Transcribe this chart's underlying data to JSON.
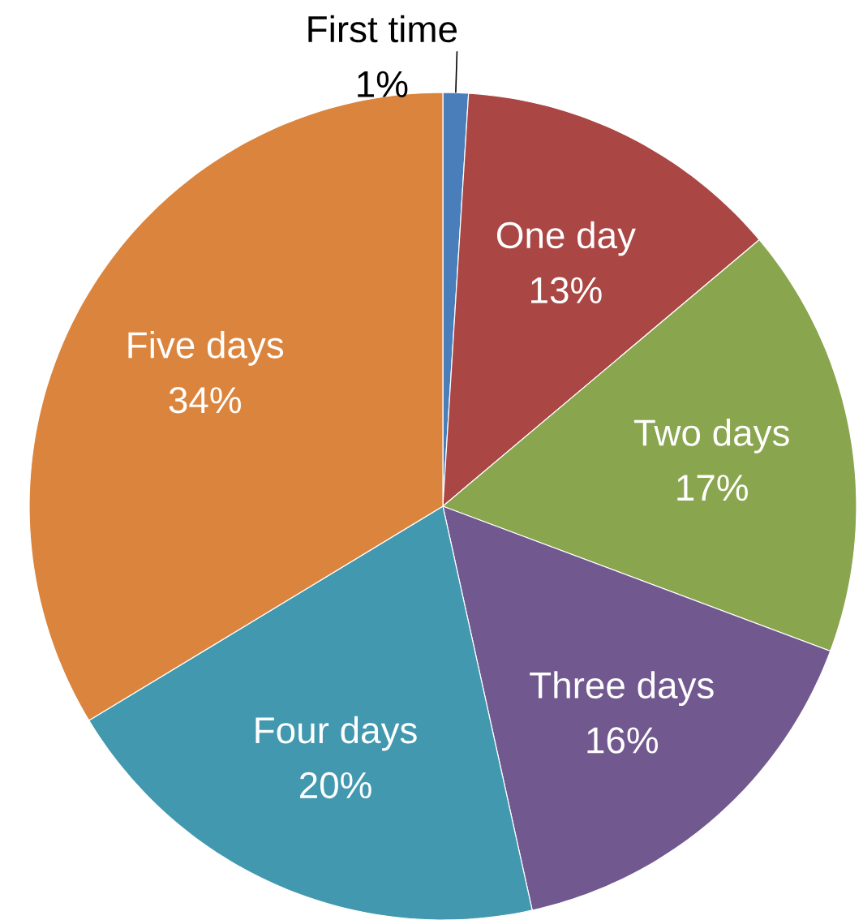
{
  "chart_data": {
    "type": "pie",
    "categories": [
      "First time",
      "One day",
      "Two days",
      "Three days",
      "Four days",
      "Five days"
    ],
    "values": [
      1,
      13,
      17,
      16,
      20,
      34
    ],
    "value_labels": [
      "1%",
      "13%",
      "17%",
      "16%",
      "20%",
      "34%"
    ],
    "colors": [
      "#4a7ebb",
      "#aa4643",
      "#89a54e",
      "#71588f",
      "#4198af",
      "#db843d"
    ]
  }
}
